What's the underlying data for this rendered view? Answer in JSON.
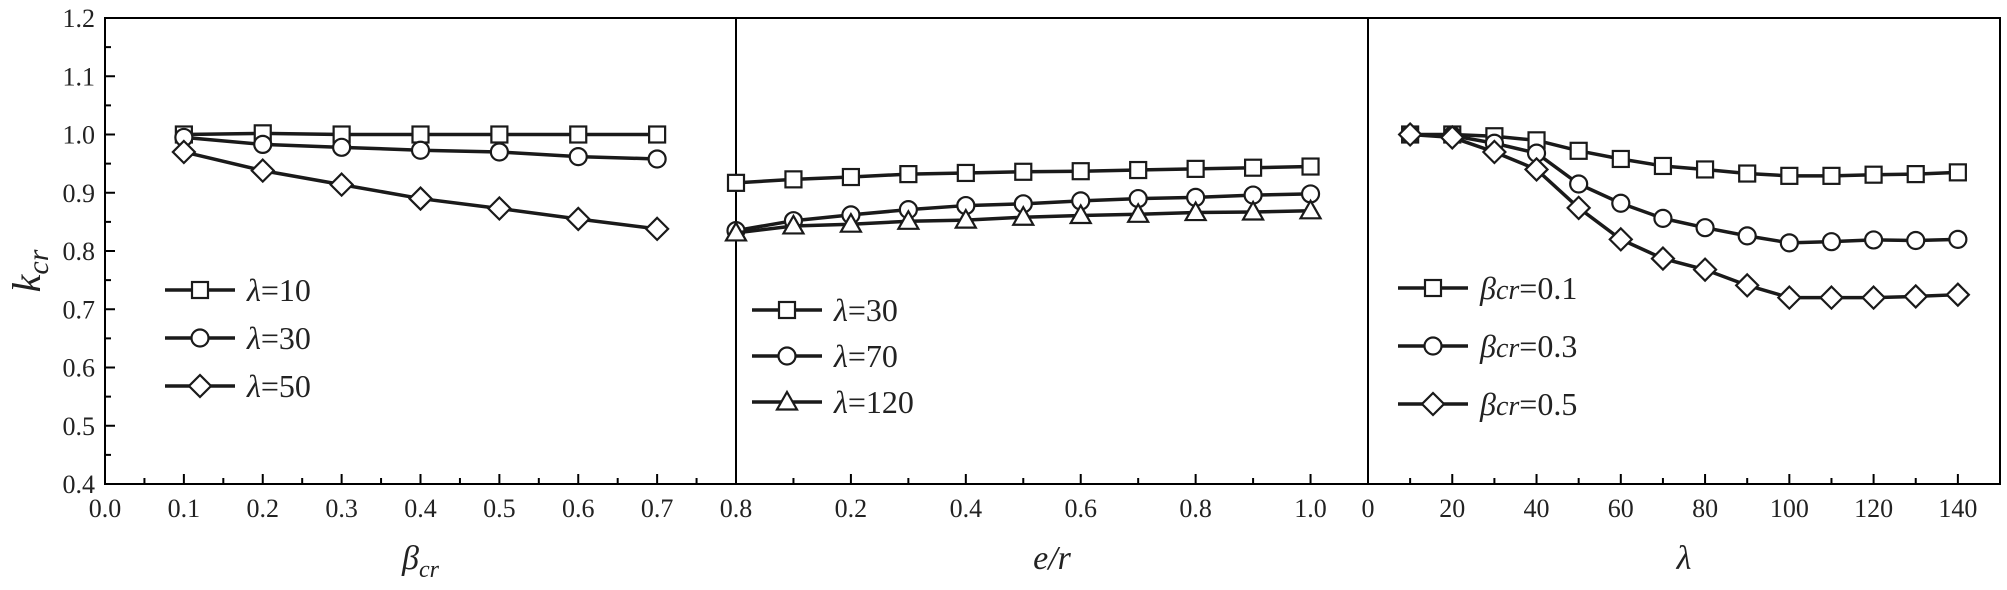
{
  "chart_data": {
    "type": "line",
    "ylabel": {
      "main": "k",
      "sub": "cr"
    },
    "ylim": [
      0.4,
      1.2
    ],
    "yticks": [
      "0.4",
      "0.5",
      "0.6",
      "0.7",
      "0.8",
      "0.9",
      "1.0",
      "1.1",
      "1.2"
    ],
    "panels": [
      {
        "id": "p1",
        "xlabel": {
          "main": "β",
          "sub": "cr"
        },
        "xlim": [
          0.0,
          0.8
        ],
        "xticks": [
          {
            "v": 0.0,
            "label": "0.0"
          },
          {
            "v": 0.1,
            "label": "0.1"
          },
          {
            "v": 0.2,
            "label": "0.2"
          },
          {
            "v": 0.3,
            "label": "0.3"
          },
          {
            "v": 0.4,
            "label": "0.4"
          },
          {
            "v": 0.5,
            "label": "0.5"
          },
          {
            "v": 0.6,
            "label": "0.6"
          },
          {
            "v": 0.7,
            "label": "0.7"
          },
          {
            "v": 0.8,
            "label": "0.8"
          }
        ],
        "minor_ticks": [
          0.05,
          0.15,
          0.25,
          0.35,
          0.45,
          0.55,
          0.65,
          0.75
        ],
        "legend_position": "lower-left",
        "series": [
          {
            "name": "λ=10",
            "prefix": "λ",
            "suffix": "=10",
            "marker": "square",
            "x": [
              0.1,
              0.2,
              0.3,
              0.4,
              0.5,
              0.6,
              0.7
            ],
            "y": [
              1.0,
              1.002,
              1.0,
              1.0,
              1.0,
              1.0,
              1.0
            ]
          },
          {
            "name": "λ=30",
            "prefix": "λ",
            "suffix": "=30",
            "marker": "circle",
            "x": [
              0.1,
              0.2,
              0.3,
              0.4,
              0.5,
              0.6,
              0.7
            ],
            "y": [
              0.995,
              0.983,
              0.978,
              0.973,
              0.97,
              0.962,
              0.958
            ]
          },
          {
            "name": "λ=50",
            "prefix": "λ",
            "suffix": "=50",
            "marker": "diamond",
            "x": [
              0.1,
              0.2,
              0.3,
              0.4,
              0.5,
              0.6,
              0.7
            ],
            "y": [
              0.97,
              0.938,
              0.914,
              0.89,
              0.873,
              0.855,
              0.838
            ]
          }
        ]
      },
      {
        "id": "p2",
        "xlabel": {
          "main": "e/r",
          "sub": ""
        },
        "xlim": [
          0.0,
          1.1
        ],
        "xticks": [
          {
            "v": 0.2,
            "label": "0.2"
          },
          {
            "v": 0.4,
            "label": "0.4"
          },
          {
            "v": 0.6,
            "label": "0.6"
          },
          {
            "v": 0.8,
            "label": "0.8"
          },
          {
            "v": 1.0,
            "label": "1.0"
          }
        ],
        "minor_ticks": [
          0.1,
          0.3,
          0.5,
          0.7,
          0.9
        ],
        "legend_position": "center-left",
        "series": [
          {
            "name": "λ=30",
            "prefix": "λ",
            "suffix": "=30",
            "marker": "square",
            "x": [
              0.0,
              0.1,
              0.2,
              0.3,
              0.4,
              0.5,
              0.6,
              0.7,
              0.8,
              0.9,
              1.0
            ],
            "y": [
              0.917,
              0.923,
              0.927,
              0.932,
              0.934,
              0.936,
              0.937,
              0.939,
              0.941,
              0.943,
              0.945
            ]
          },
          {
            "name": "λ=70",
            "prefix": "λ",
            "suffix": "=70",
            "marker": "circle",
            "x": [
              0.0,
              0.1,
              0.2,
              0.3,
              0.4,
              0.5,
              0.6,
              0.7,
              0.8,
              0.9,
              1.0
            ],
            "y": [
              0.835,
              0.852,
              0.862,
              0.871,
              0.878,
              0.881,
              0.886,
              0.89,
              0.892,
              0.896,
              0.898
            ]
          },
          {
            "name": "λ=120",
            "prefix": "λ",
            "suffix": "=120",
            "marker": "triangle",
            "x": [
              0.0,
              0.1,
              0.2,
              0.3,
              0.4,
              0.5,
              0.6,
              0.7,
              0.8,
              0.9,
              1.0
            ],
            "y": [
              0.831,
              0.843,
              0.846,
              0.851,
              0.853,
              0.858,
              0.861,
              0.863,
              0.866,
              0.867,
              0.869
            ]
          }
        ]
      },
      {
        "id": "p3",
        "xlabel": {
          "main": "λ",
          "sub": ""
        },
        "xlim": [
          0,
          150
        ],
        "xticks": [
          {
            "v": 0,
            "label": "0"
          },
          {
            "v": 20,
            "label": "20"
          },
          {
            "v": 40,
            "label": "40"
          },
          {
            "v": 60,
            "label": "60"
          },
          {
            "v": 80,
            "label": "80"
          },
          {
            "v": 100,
            "label": "100"
          },
          {
            "v": 120,
            "label": "120"
          },
          {
            "v": 140,
            "label": "140"
          }
        ],
        "minor_ticks": [
          10,
          30,
          50,
          70,
          90,
          110,
          130
        ],
        "legend_position": "center-left",
        "series": [
          {
            "name": "βcr=0.1",
            "prefix": "β",
            "sub": "cr",
            "suffix": "=0.1",
            "marker": "square",
            "x": [
              10,
              20,
              30,
              40,
              50,
              60,
              70,
              80,
              90,
              100,
              110,
              120,
              130,
              140
            ],
            "y": [
              1.0,
              1.0,
              0.997,
              0.99,
              0.972,
              0.958,
              0.946,
              0.94,
              0.933,
              0.929,
              0.929,
              0.931,
              0.932,
              0.935
            ]
          },
          {
            "name": "βcr=0.3",
            "prefix": "β",
            "sub": "cr",
            "suffix": "=0.3",
            "marker": "circle",
            "x": [
              10,
              20,
              30,
              40,
              50,
              60,
              70,
              80,
              90,
              100,
              110,
              120,
              130,
              140
            ],
            "y": [
              1.0,
              0.998,
              0.985,
              0.968,
              0.915,
              0.882,
              0.856,
              0.84,
              0.826,
              0.814,
              0.816,
              0.819,
              0.818,
              0.82
            ]
          },
          {
            "name": "βcr=0.5",
            "prefix": "β",
            "sub": "cr",
            "suffix": "=0.5",
            "marker": "diamond",
            "x": [
              10,
              20,
              30,
              40,
              50,
              60,
              70,
              80,
              90,
              100,
              110,
              120,
              130,
              140
            ],
            "y": [
              1.0,
              0.995,
              0.97,
              0.94,
              0.874,
              0.82,
              0.787,
              0.768,
              0.741,
              0.72,
              0.72,
              0.72,
              0.722,
              0.725
            ]
          }
        ]
      }
    ]
  }
}
